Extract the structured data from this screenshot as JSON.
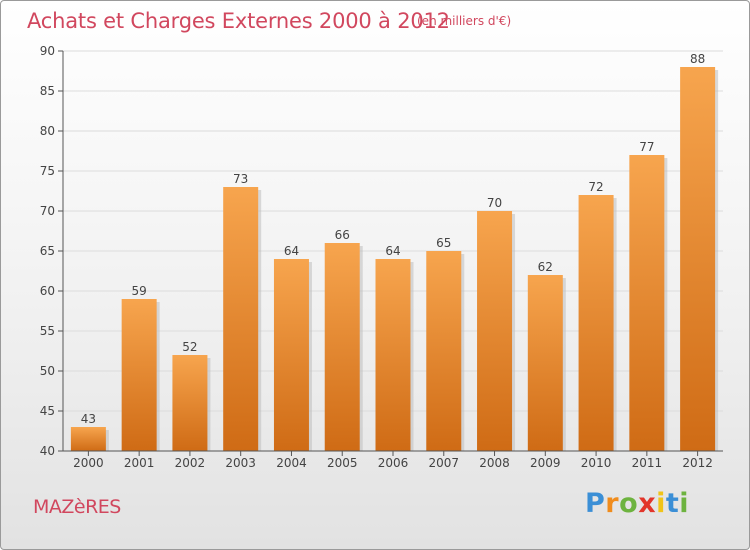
{
  "header": {
    "title": "Achats et Charges Externes 2000 à 2012",
    "subtitle": "(en milliers d'€)"
  },
  "footer": {
    "place": "MAZèRES",
    "logo": [
      "P",
      "r",
      "o",
      "x",
      "i",
      "t",
      "i"
    ],
    "logo_colors": [
      "#3b8fd6",
      "#f08c1c",
      "#6db33f",
      "#e2352a",
      "#f0c419",
      "#3b8fd6",
      "#6db33f"
    ]
  },
  "colors": {
    "title": "#d1475e",
    "bar_light": "#f7a54e",
    "bar_dark": "#cf6b15",
    "grid": "#dcdcdc",
    "axis": "#555555",
    "label": "#444444"
  },
  "chart_data": {
    "type": "bar",
    "title": "Achats et Charges Externes 2000 à 2012",
    "subtitle": "(en milliers d'€)",
    "categories": [
      "2000",
      "2001",
      "2002",
      "2003",
      "2004",
      "2005",
      "2006",
      "2007",
      "2008",
      "2009",
      "2010",
      "2011",
      "2012"
    ],
    "values": [
      43,
      59,
      52,
      73,
      64,
      66,
      64,
      65,
      70,
      62,
      72,
      77,
      88
    ],
    "ylim": [
      40,
      90
    ],
    "yticks": [
      40,
      45,
      50,
      55,
      60,
      65,
      70,
      75,
      80,
      85,
      90
    ],
    "grid": true,
    "data_labels": true
  }
}
